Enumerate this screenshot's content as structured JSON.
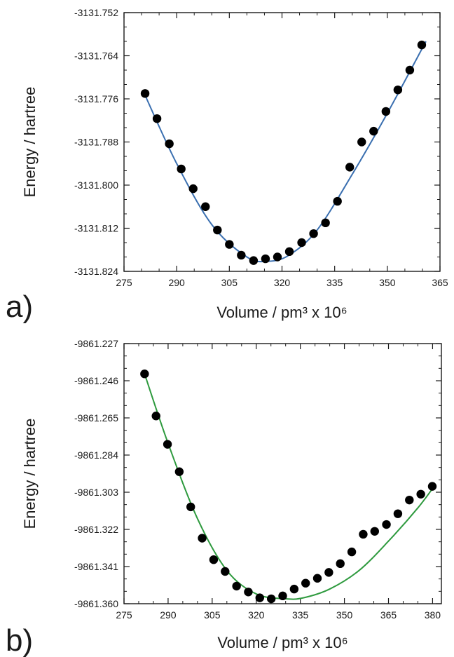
{
  "chart_data": [
    {
      "type": "scatter",
      "panel_label": "a)",
      "xlabel": "Volume / pm³ x 10⁶",
      "ylabel": "Energy / hartree",
      "xlim": [
        275,
        365
      ],
      "ylim": [
        -3131.824,
        -3131.752
      ],
      "xticks": [
        275,
        290,
        305,
        320,
        335,
        350,
        365
      ],
      "yticks": [
        -3131.824,
        -3131.812,
        -3131.8,
        -3131.788,
        -3131.776,
        -3131.764,
        -3131.752
      ],
      "ytick_labels": [
        "-3131.824",
        "-3131.812",
        "-3131.800",
        "-3131.788",
        "-3131.776",
        "-3131.764",
        "-3131.752"
      ],
      "fit_color": "#3a6fb0",
      "point_color": "#000000",
      "grid": false,
      "x": [
        281.0,
        284.4,
        287.9,
        291.3,
        294.7,
        298.2,
        301.6,
        305.0,
        308.4,
        311.9,
        315.3,
        318.7,
        322.1,
        325.6,
        329.0,
        332.4,
        335.8,
        339.3,
        342.7,
        346.1,
        349.6,
        353.0,
        356.4,
        359.8
      ],
      "y": [
        -3131.7745,
        -3131.7815,
        -3131.7885,
        -3131.7955,
        -3131.801,
        -3131.806,
        -3131.8125,
        -3131.8165,
        -3131.8195,
        -3131.821,
        -3131.8205,
        -3131.82,
        -3131.8185,
        -3131.816,
        -3131.8135,
        -3131.8105,
        -3131.8045,
        -3131.795,
        -3131.788,
        -3131.785,
        -3131.7795,
        -3131.7735,
        -3131.768,
        -3131.761
      ],
      "fit": {
        "x": [
          281.0,
          290.0,
          300.0,
          310.0,
          316.0,
          322.0,
          330.0,
          340.0,
          350.0,
          361.0
        ],
        "y": [
          -3131.775,
          -3131.794,
          -3131.811,
          -3131.82,
          -3131.8212,
          -3131.8195,
          -3131.8125,
          -3131.797,
          -3131.78,
          -3131.76
        ]
      }
    },
    {
      "type": "scatter",
      "panel_label": "b)",
      "xlabel": "Volume / pm³ x 10⁶",
      "ylabel": "Energy / hartree",
      "xlim": [
        275,
        383
      ],
      "ylim": [
        -9861.36,
        -9861.227
      ],
      "xticks": [
        275,
        290,
        305,
        320,
        335,
        350,
        365,
        380
      ],
      "yticks": [
        -9861.36,
        -9861.341,
        -9861.322,
        -9861.303,
        -9861.284,
        -9861.265,
        -9861.246,
        -9861.227
      ],
      "ytick_labels": [
        "-9861.360",
        "-9861.341",
        "-9861.322",
        "-9861.303",
        "-9861.284",
        "-9861.265",
        "-9861.246",
        "-9861.227"
      ],
      "fit_color": "#2e9a3e",
      "point_color": "#000000",
      "grid": false,
      "x": [
        282.0,
        285.9,
        289.8,
        293.8,
        297.7,
        301.6,
        305.5,
        309.4,
        313.3,
        317.3,
        321.2,
        325.1,
        329.0,
        332.9,
        336.8,
        340.8,
        344.7,
        348.6,
        352.5,
        356.4,
        360.3,
        364.3,
        368.2,
        372.1,
        376.0,
        379.9
      ],
      "y": [
        -9861.2425,
        -9861.264,
        -9861.2785,
        -9861.2925,
        -9861.3105,
        -9861.3265,
        -9861.3375,
        -9861.3435,
        -9861.351,
        -9861.354,
        -9861.357,
        -9861.3575,
        -9861.356,
        -9861.3525,
        -9861.3495,
        -9861.347,
        -9861.344,
        -9861.3395,
        -9861.3335,
        -9861.3245,
        -9861.323,
        -9861.3195,
        -9861.314,
        -9861.307,
        -9861.304,
        -9861.3
      ],
      "fit": {
        "x": [
          282.0,
          290.0,
          300.0,
          310.0,
          320.0,
          330.0,
          336.0,
          345.0,
          355.0,
          365.0,
          375.0,
          381.0
        ],
        "y": [
          -9861.2425,
          -9861.278,
          -9861.3165,
          -9861.343,
          -9861.355,
          -9861.3575,
          -9861.357,
          -9861.3525,
          -9861.343,
          -9861.328,
          -9861.311,
          -9861.299
        ]
      }
    }
  ]
}
